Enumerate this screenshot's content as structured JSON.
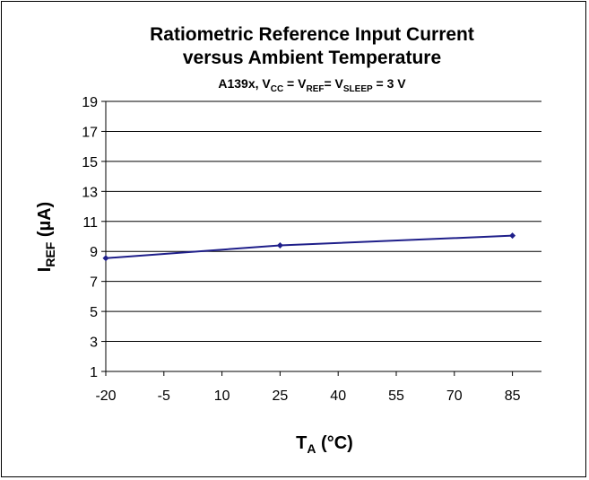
{
  "chart_data": {
    "type": "line",
    "title": "Ratiometric Reference Input Current",
    "title_line2": "versus Ambient Temperature",
    "subtitle": {
      "prefix": "A139x, V",
      "cc_sub": "CC",
      "eq1": " = V",
      "ref_sub": "REF",
      "eq2": "= V",
      "sleep_sub": "SLEEP",
      "tail": " = 3 V"
    },
    "ylabel": {
      "main": "I",
      "sub": "REF",
      "unit": " (µA)"
    },
    "xlabel": {
      "main": "T",
      "sub": "A",
      "unit": " (°C)"
    },
    "x_ticks": [
      "-20",
      "-5",
      "10",
      "25",
      "40",
      "55",
      "70",
      "85"
    ],
    "y_ticks": [
      "1",
      "3",
      "5",
      "7",
      "9",
      "11",
      "13",
      "15",
      "17",
      "19"
    ],
    "xlim": [
      -20,
      92.5
    ],
    "ylim": [
      1,
      19
    ],
    "grid": "horizontal",
    "line_color": "#1f1f8a",
    "series": [
      {
        "x": [
          -20,
          25,
          85
        ],
        "y": [
          8.55,
          9.4,
          10.05
        ]
      }
    ]
  }
}
